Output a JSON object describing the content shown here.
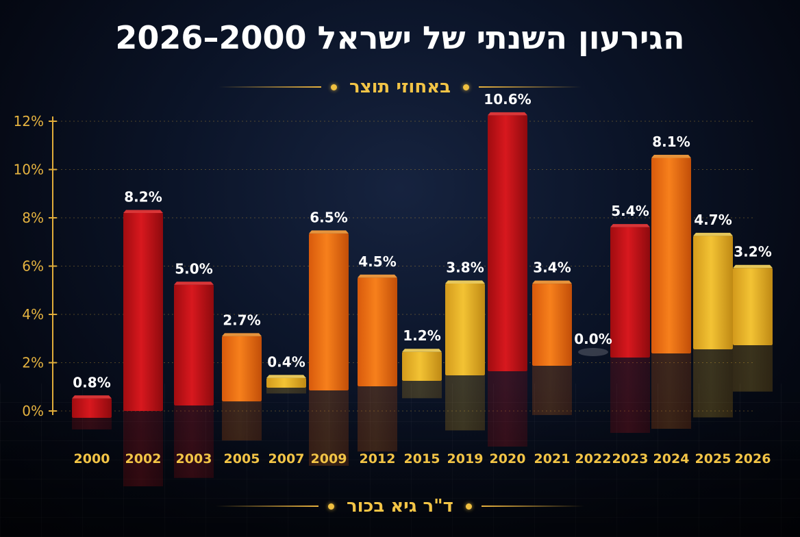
{
  "title": "הגירעון השנתי של ישראל 2000–2026",
  "subtitle": "באחוזי תוצר",
  "author": "ד\"ר גיא בכור",
  "colors": {
    "red": "#c8141a",
    "orange": "#ee6a12",
    "yellow": "#e9b42a",
    "accent": "#f2c446",
    "label": "#ffffff"
  },
  "chart_data": {
    "type": "bar",
    "ylim": [
      0,
      12
    ],
    "yticks": [
      "0%",
      "2%",
      "4%",
      "6%",
      "8%",
      "10%",
      "12%"
    ],
    "grid": true,
    "categories": [
      "2000",
      "2002",
      "2003",
      "2005",
      "2007",
      "2009",
      "2012",
      "2015",
      "2019",
      "2020",
      "2021",
      "2022",
      "2023",
      "2024",
      "2025",
      "2026"
    ],
    "values": [
      0.8,
      8.2,
      5.0,
      2.7,
      0.4,
      6.5,
      4.5,
      1.2,
      3.8,
      10.6,
      3.4,
      0.0,
      5.4,
      8.1,
      4.7,
      3.2
    ],
    "value_labels": [
      "0.8%",
      "8.2%",
      "5.0%",
      "2.7%",
      "0.4%",
      "6.5%",
      "4.5%",
      "1.2%",
      "3.8%",
      "10.6%",
      "3.4%",
      "0.0%",
      "5.4%",
      "8.1%",
      "4.7%",
      "3.2%"
    ],
    "bar_colors": [
      "red",
      "red",
      "red",
      "orange",
      "yellow",
      "orange",
      "orange",
      "yellow",
      "yellow",
      "red",
      "orange",
      "yellow",
      "red",
      "orange",
      "yellow",
      "yellow"
    ]
  }
}
